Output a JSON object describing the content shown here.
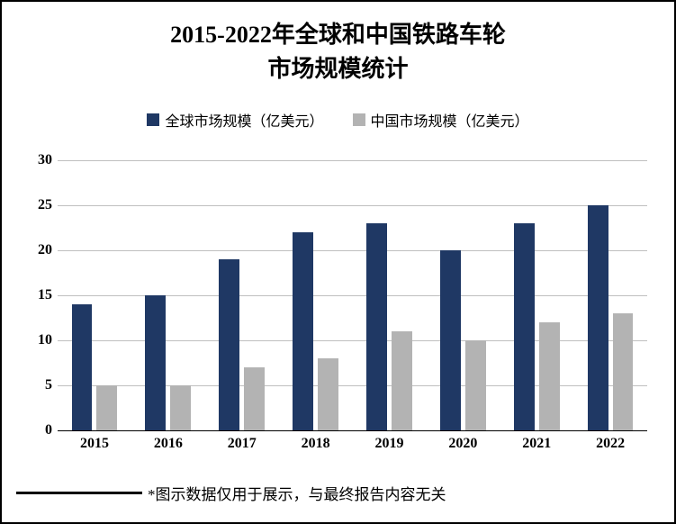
{
  "chart": {
    "type": "bar",
    "title_line1": "2015-2022年全球和中国铁路车轮",
    "title_line2": "市场规模统计",
    "title_fontsize": 26,
    "title_color": "#000000",
    "background_color": "#ffffff",
    "frame_border_color": "#000000",
    "legend": {
      "series1_label": "全球市场规模（亿美元）",
      "series2_label": "中国市场规模（亿美元）",
      "fontsize": 16,
      "text_color": "#000000"
    },
    "categories": [
      "2015",
      "2016",
      "2017",
      "2018",
      "2019",
      "2020",
      "2021",
      "2022"
    ],
    "series1_values": [
      14,
      15,
      19,
      22,
      23,
      20,
      23,
      25
    ],
    "series2_values": [
      5,
      5,
      7,
      8,
      11,
      10,
      12,
      13
    ],
    "series1_color": "#1f3864",
    "series2_color": "#b3b3b3",
    "ylim": [
      0,
      30
    ],
    "ytick_step": 5,
    "grid_color": "#bfbfbf",
    "axis_line_color": "#000000",
    "x_label_fontsize": 16,
    "y_label_fontsize": 16,
    "bar_width_pct": 28,
    "bar_gap_pct": 6,
    "footer_note": "*图示数据仅用于展示，与最终报告内容无关",
    "footer_fontsize": 17,
    "footer_text_color": "#000000"
  }
}
